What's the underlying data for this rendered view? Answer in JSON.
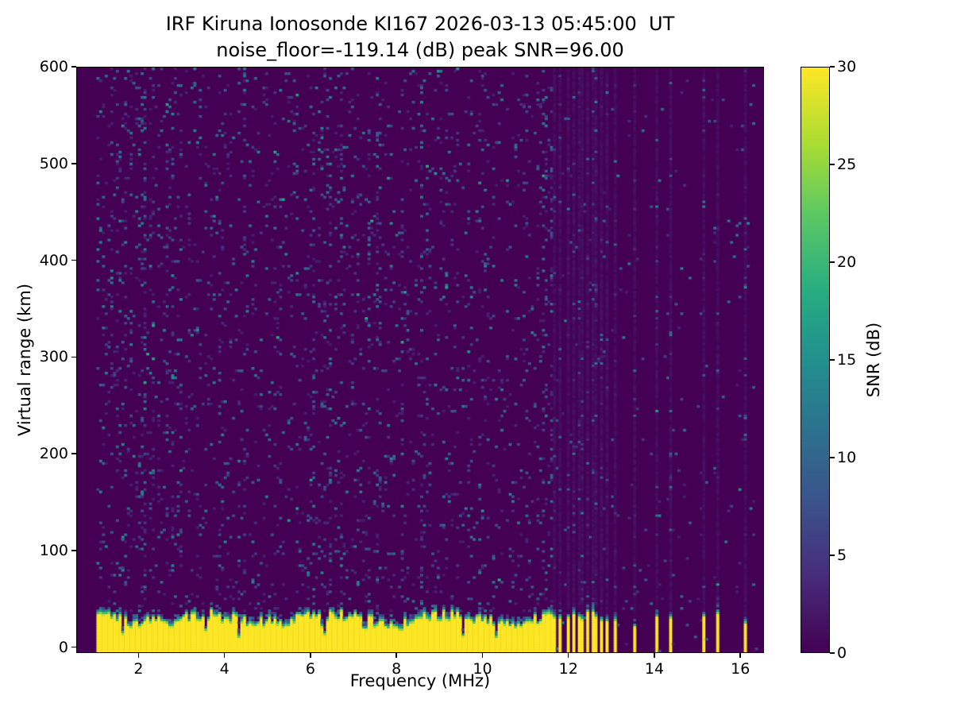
{
  "chart_data": {
    "type": "heatmap",
    "title_line1": "IRF Kiruna Ionosonde KI167 2026-03-13 05:45:00  UT",
    "title_line2": "noise_floor=-119.14 (dB) peak SNR=96.00",
    "station": "KI167",
    "timestamp_ut": "2026-03-13 05:45:00",
    "noise_floor_db": -119.14,
    "peak_snr_db": 96.0,
    "xlabel": "Frequency (MHz)",
    "ylabel": "Virtual range (km)",
    "xlim": [
      0.55,
      16.55
    ],
    "ylim": [
      -6,
      600
    ],
    "xticks": [
      2,
      4,
      6,
      8,
      10,
      12,
      14,
      16
    ],
    "yticks": [
      0,
      100,
      200,
      300,
      400,
      500,
      600
    ],
    "grid": false,
    "legend": "none",
    "colorbar": {
      "label": "SNR (dB)",
      "ticks": [
        0,
        5,
        10,
        15,
        20,
        25,
        30
      ],
      "vmin": 0,
      "vmax": 30,
      "colormap": "viridis"
    },
    "data_range_mhz": [
      0.98,
      16.45
    ],
    "background_snr_db": 0,
    "noise_speckle": {
      "base_density": 0.05,
      "snr_range_db": [
        2.5,
        18
      ]
    },
    "ground_clutter": {
      "snr_db": 30,
      "top_km_mean": 32,
      "top_km_jitter": 6,
      "continuous_band_mhz": [
        0.98,
        11.63
      ],
      "striped_band_mhz": [
        11.63,
        13.12
      ],
      "stripe_period_mhz": 0.157,
      "stripe_width_mhz": 0.075,
      "isolated_bars_mhz": [
        13.55,
        14.05,
        14.4,
        15.18,
        15.5,
        16.14
      ],
      "isolated_bar_width_mhz": 0.09,
      "notches": [
        [
          1.6,
          8
        ],
        [
          2.75,
          10
        ],
        [
          3.55,
          14
        ],
        [
          4.35,
          20
        ],
        [
          5.5,
          8
        ],
        [
          6.3,
          22
        ],
        [
          7.25,
          16
        ],
        [
          8.1,
          8
        ],
        [
          9.55,
          12
        ],
        [
          10.35,
          14
        ],
        [
          11.0,
          10
        ]
      ]
    }
  }
}
